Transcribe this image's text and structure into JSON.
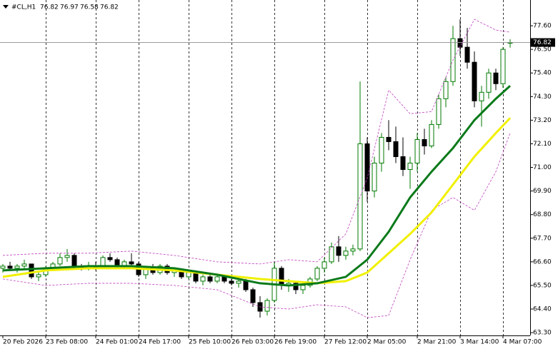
{
  "chart_data": {
    "type": "candlestick",
    "symbol": "#CL,H1",
    "categories": [
      "20 Feb 2026",
      null,
      null,
      null,
      null,
      null,
      "23 Feb 08:00",
      null,
      null,
      null,
      null,
      null,
      null,
      "24 Feb 01:00",
      null,
      null,
      null,
      null,
      null,
      "24 Feb 17:00",
      null,
      null,
      null,
      null,
      null,
      null,
      "25 Feb 10:00",
      null,
      null,
      null,
      null,
      null,
      "26 Feb 03:00",
      null,
      null,
      null,
      null,
      null,
      "26 Feb 19:00",
      null,
      null,
      null,
      null,
      null,
      null,
      "27 Feb 12:00",
      null,
      null,
      null,
      null,
      null,
      "2 Mar 05:00",
      null,
      null,
      null,
      null,
      null,
      null,
      "2 Mar 21:00",
      null,
      null,
      null,
      null,
      null,
      "3 Mar 14:00",
      null,
      null,
      null,
      null,
      null,
      "4 Mar 07:00",
      null
    ],
    "open": [
      66.3,
      66.4,
      66.3,
      66.4,
      66.5,
      65.9,
      66.0,
      66.3,
      66.5,
      66.8,
      66.9,
      66.4,
      66.3,
      66.4,
      66.3,
      66.8,
      66.7,
      66.4,
      66.6,
      66.5,
      66.0,
      66.3,
      66.1,
      66.4,
      66.1,
      66.2,
      65.9,
      66.1,
      65.7,
      65.9,
      65.7,
      65.9,
      65.7,
      65.6,
      65.7,
      65.3,
      64.7,
      64.3,
      64.8,
      66.3,
      65.5,
      65.6,
      65.3,
      65.5,
      65.8,
      66.3,
      66.6,
      67.3,
      66.9,
      67.1,
      67.2,
      72.1,
      69.9,
      71.2,
      72.4,
      72.2,
      71.5,
      70.9,
      71.2,
      72.3,
      72.0,
      73.0,
      74.2,
      75.0,
      77.0,
      76.6,
      75.9,
      74.1,
      74.5,
      75.4,
      74.9,
      76.82
    ],
    "high": [
      66.5,
      66.6,
      66.5,
      66.7,
      66.5,
      66.1,
      66.4,
      66.6,
      67.0,
      67.2,
      67.0,
      66.5,
      66.6,
      66.6,
      66.9,
      67.0,
      66.8,
      66.7,
      67.0,
      66.6,
      66.4,
      66.5,
      66.5,
      66.5,
      66.3,
      66.3,
      66.2,
      66.2,
      66.0,
      66.0,
      66.0,
      66.0,
      65.8,
      65.8,
      65.8,
      65.4,
      65.0,
      64.9,
      66.6,
      66.4,
      65.8,
      65.7,
      65.6,
      65.9,
      66.4,
      66.8,
      67.5,
      67.8,
      67.3,
      67.4,
      75.0,
      72.4,
      71.5,
      72.6,
      73.2,
      72.9,
      72.4,
      71.5,
      72.6,
      72.8,
      73.2,
      74.4,
      75.2,
      77.6,
      77.9,
      77.5,
      76.4,
      74.8,
      75.6,
      75.6,
      76.6,
      76.97
    ],
    "low": [
      66.1,
      66.2,
      66.1,
      66.3,
      65.8,
      65.7,
      65.9,
      66.2,
      66.4,
      66.6,
      66.3,
      66.2,
      66.2,
      66.2,
      66.3,
      66.6,
      66.3,
      66.3,
      66.4,
      65.9,
      65.8,
      66.0,
      66.0,
      66.0,
      65.9,
      65.8,
      65.8,
      65.6,
      65.5,
      65.6,
      65.6,
      65.6,
      65.5,
      65.4,
      65.2,
      64.5,
      64.0,
      64.1,
      64.7,
      65.3,
      65.2,
      65.1,
      65.1,
      65.4,
      65.7,
      66.1,
      66.5,
      66.6,
      66.7,
      66.9,
      67.1,
      69.4,
      69.6,
      70.8,
      71.8,
      71.2,
      70.6,
      70.0,
      70.8,
      71.6,
      71.9,
      72.8,
      73.8,
      74.8,
      76.2,
      75.6,
      73.8,
      72.9,
      74.2,
      74.6,
      74.7,
      76.58
    ],
    "close": [
      66.4,
      66.3,
      66.4,
      66.5,
      65.9,
      66.0,
      66.3,
      66.5,
      66.8,
      66.9,
      66.4,
      66.3,
      66.4,
      66.3,
      66.8,
      66.7,
      66.4,
      66.6,
      66.5,
      66.0,
      66.3,
      66.1,
      66.4,
      66.1,
      66.2,
      65.9,
      66.1,
      65.7,
      65.9,
      65.7,
      65.9,
      65.7,
      65.6,
      65.7,
      65.3,
      64.7,
      64.3,
      64.8,
      66.3,
      65.5,
      65.6,
      65.3,
      65.5,
      65.8,
      66.3,
      66.6,
      67.3,
      66.9,
      67.1,
      67.2,
      72.1,
      69.9,
      71.2,
      72.4,
      72.2,
      71.5,
      70.9,
      71.2,
      72.3,
      72.0,
      73.0,
      74.2,
      75.0,
      77.0,
      76.6,
      75.9,
      74.1,
      74.5,
      75.4,
      74.9,
      76.5,
      76.82
    ],
    "up_color": "#007a00",
    "down_color": "#000000",
    "lines": [
      {
        "x": [
          0,
          6,
          12,
          18,
          24,
          30,
          36,
          40,
          44,
          48,
          51,
          54,
          57,
          60,
          63,
          66,
          69,
          71
        ],
        "values": [
          66.9,
          67.0,
          67.0,
          67.1,
          66.9,
          66.6,
          66.5,
          66.7,
          66.6,
          67.9,
          70.5,
          74.6,
          73.5,
          73.6,
          76.0,
          77.9,
          77.4,
          77.3
        ],
        "color": "#c040c0",
        "style": "dashed"
      },
      {
        "x": [
          0,
          6,
          12,
          18,
          24,
          30,
          36,
          40,
          44,
          48,
          51,
          54,
          57,
          60,
          63,
          66,
          69,
          71
        ],
        "values": [
          65.8,
          65.5,
          65.6,
          65.6,
          65.5,
          65.3,
          64.5,
          64.4,
          64.6,
          64.5,
          64.0,
          64.1,
          66.7,
          69.0,
          69.6,
          69.0,
          70.8,
          72.6
        ],
        "color": "#c040c0",
        "style": "dashed"
      },
      {
        "x": [
          0,
          6,
          12,
          18,
          24,
          30,
          36,
          40,
          44,
          48,
          51,
          54,
          57,
          60,
          63,
          66,
          69,
          71
        ],
        "values": [
          65.9,
          66.2,
          66.3,
          66.3,
          66.2,
          66.0,
          65.8,
          65.7,
          65.6,
          65.7,
          66.1,
          67.0,
          67.9,
          68.9,
          70.2,
          71.5,
          72.6,
          73.3
        ],
        "color": "#f0f000",
        "style": "solid"
      },
      {
        "x": [
          0,
          6,
          12,
          18,
          24,
          30,
          36,
          40,
          44,
          48,
          51,
          54,
          57,
          60,
          63,
          66,
          69,
          71
        ],
        "values": [
          66.2,
          66.3,
          66.4,
          66.4,
          66.3,
          66.0,
          65.6,
          65.5,
          65.6,
          65.9,
          66.7,
          68.0,
          69.6,
          70.8,
          71.9,
          73.2,
          74.2,
          74.8
        ],
        "color": "#0a7a1a",
        "style": "solid"
      }
    ],
    "ylim": [
      63.17,
      78.8
    ],
    "yticks": [
      {
        "value": 77.6,
        "label": "77.60"
      },
      {
        "value": 76.5,
        "label": "76.50"
      },
      {
        "value": 75.4,
        "label": "75.40"
      },
      {
        "value": 74.3,
        "label": "74.30"
      },
      {
        "value": 73.2,
        "label": "73.20"
      },
      {
        "value": 72.1,
        "label": "72.10"
      },
      {
        "value": 71.0,
        "label": "71.00"
      },
      {
        "value": 69.9,
        "label": "69.90"
      },
      {
        "value": 68.8,
        "label": "68.80"
      },
      {
        "value": 67.7,
        "label": "67.70"
      },
      {
        "value": 66.6,
        "label": "66.60"
      },
      {
        "value": 65.5,
        "label": "65.50"
      },
      {
        "value": 64.4,
        "label": "64.40"
      },
      {
        "value": 63.3,
        "label": "63.30"
      }
    ]
  }
}
